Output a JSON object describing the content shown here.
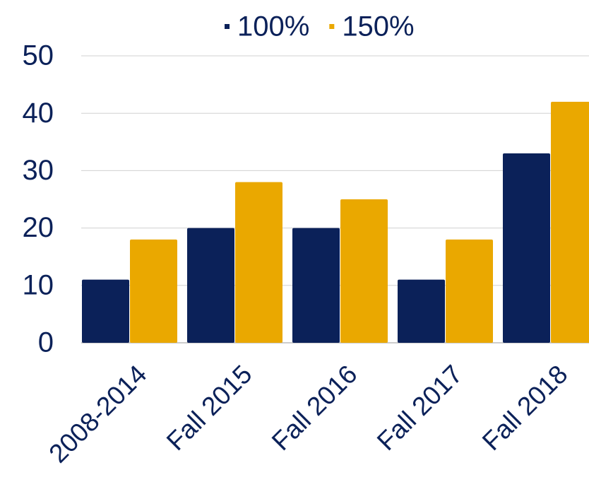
{
  "chart_data": {
    "type": "bar",
    "categories": [
      "2008-2014",
      "Fall 2015",
      "Fall 2016",
      "Fall 2017",
      "Fall 2018"
    ],
    "series": [
      {
        "name": "100%",
        "color": "#0b2159",
        "values": [
          11,
          20,
          20,
          11,
          33
        ]
      },
      {
        "name": "150%",
        "color": "#eaa800",
        "values": [
          18,
          28,
          25,
          18,
          42
        ]
      }
    ],
    "ylim": [
      0,
      50
    ],
    "yticks": [
      0,
      10,
      20,
      30,
      40,
      50
    ],
    "grid": true,
    "legend": "top"
  }
}
